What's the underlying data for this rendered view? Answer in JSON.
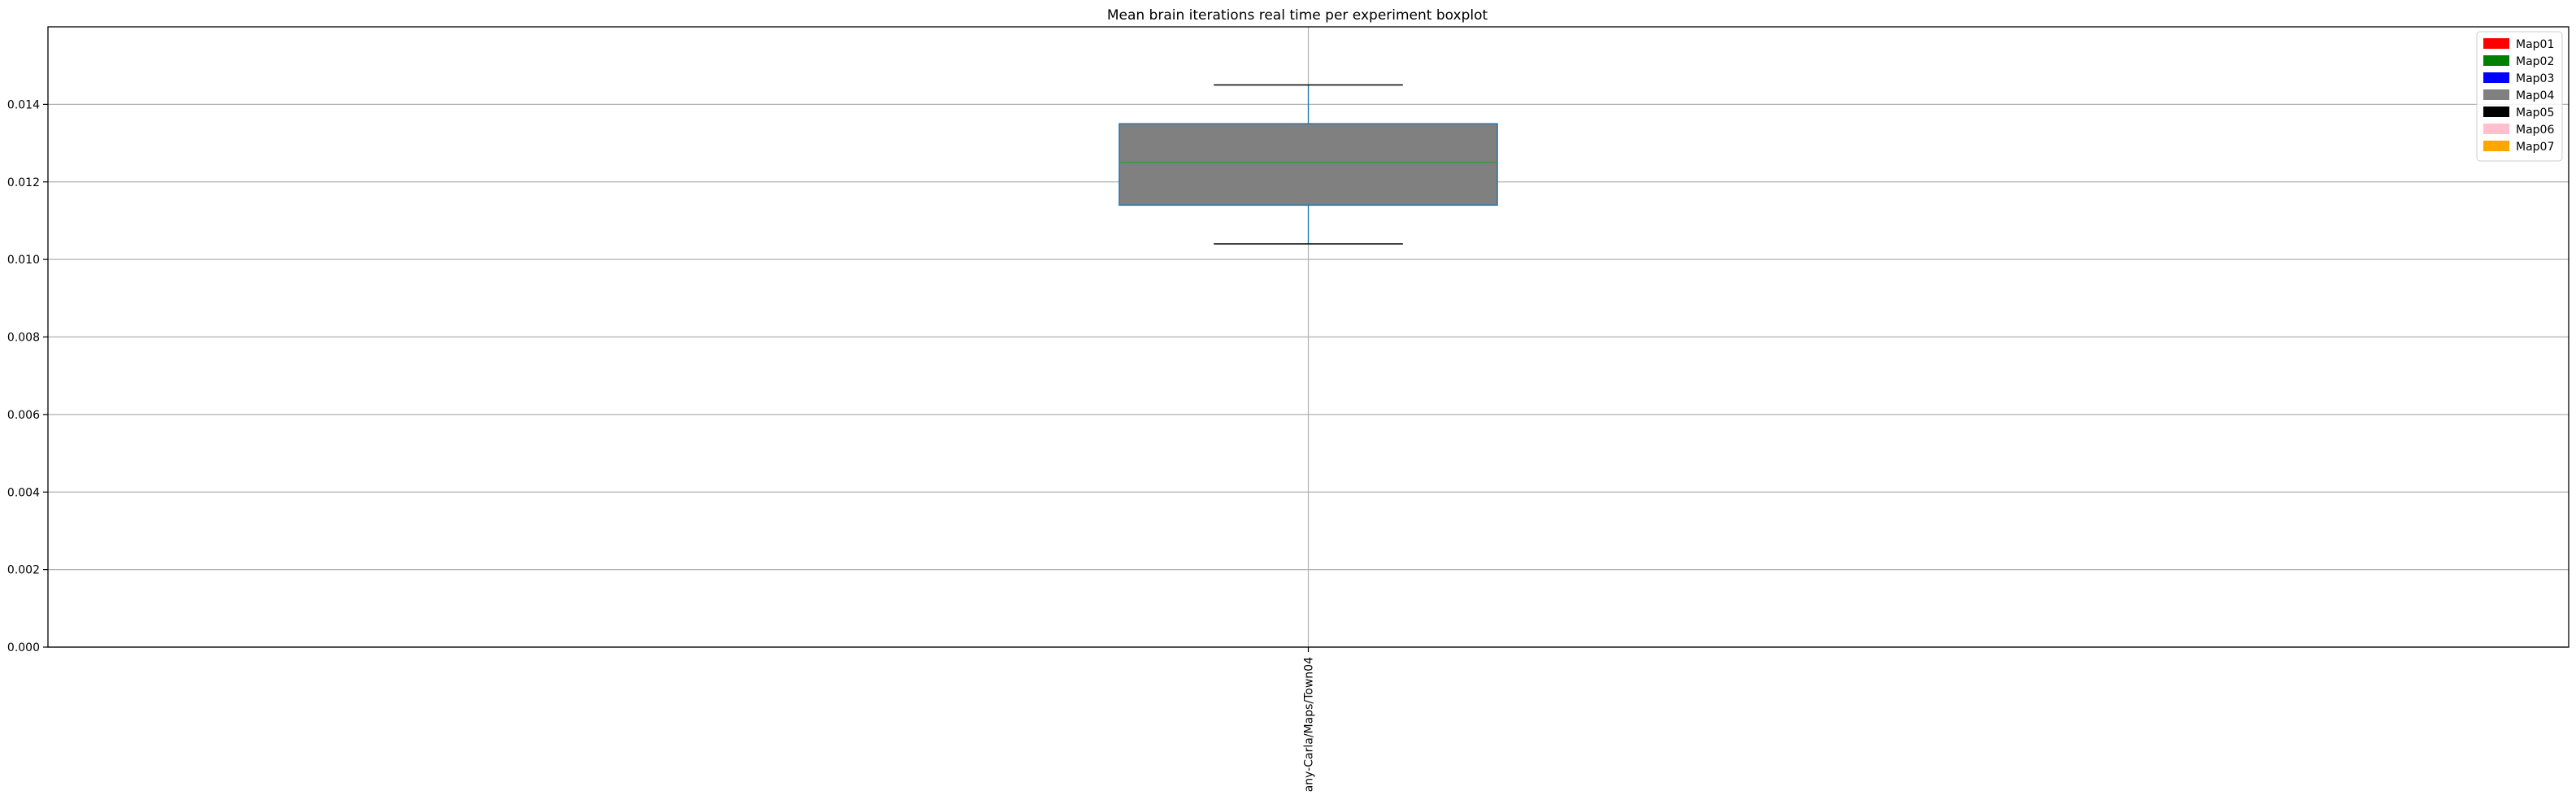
{
  "chart_data": {
    "type": "boxplot",
    "title": "Mean brain iterations real time per experiment boxplot",
    "xlabel": "",
    "ylabel": "",
    "ylim": [
      0,
      0.016
    ],
    "yticks": [
      "0.000",
      "0.002",
      "0.004",
      "0.006",
      "0.008",
      "0.010",
      "0.012",
      "0.014"
    ],
    "categories": [
      "any-Carla/Maps/Town04"
    ],
    "boxes": [
      {
        "category": "any-Carla/Maps/Town04",
        "whisker_low": 0.0104,
        "q1": 0.0114,
        "median": 0.0125,
        "q3": 0.0135,
        "whisker_high": 0.0145,
        "fill": "#808080"
      }
    ],
    "grid": true,
    "legend_position": "top-right",
    "legend": [
      {
        "label": "Map01",
        "color": "#ff0000"
      },
      {
        "label": "Map02",
        "color": "#008000"
      },
      {
        "label": "Map03",
        "color": "#0000ff"
      },
      {
        "label": "Map04",
        "color": "#808080"
      },
      {
        "label": "Map05",
        "color": "#000000"
      },
      {
        "label": "Map06",
        "color": "#ffc0cb"
      },
      {
        "label": "Map07",
        "color": "#ffa500"
      }
    ],
    "colors": {
      "box_edge": "#1f77b4",
      "median": "#2ca02c",
      "whisker": "#1f77b4",
      "cap": "#000000",
      "grid": "#b0b0b0"
    }
  }
}
